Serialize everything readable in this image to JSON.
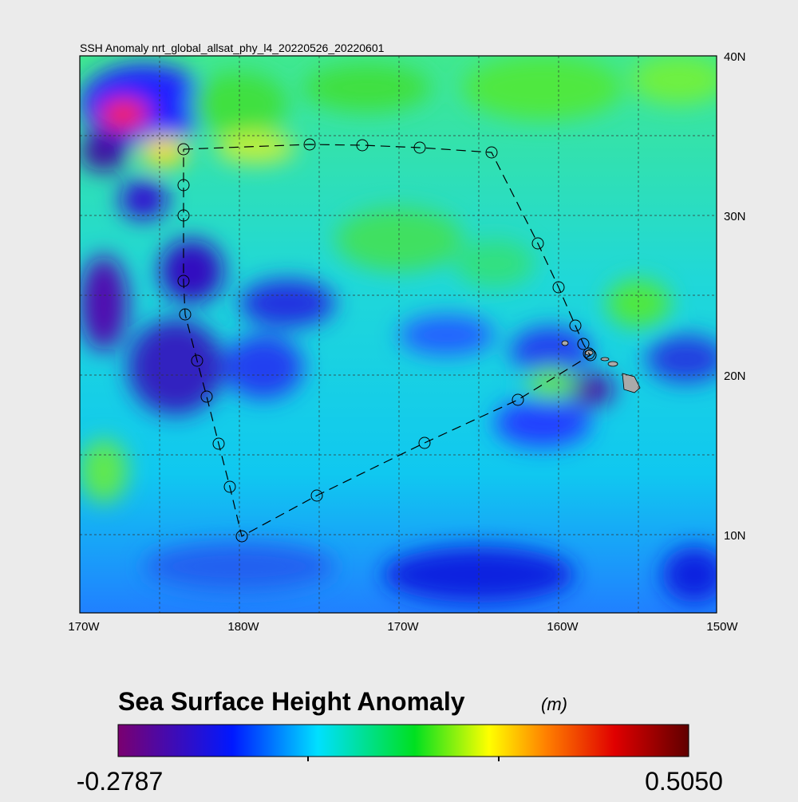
{
  "title": "SSH Anomaly nrt_global_allsat_phy_l4_20220526_20220601",
  "map": {
    "lon_labels": [
      "170W",
      "180W",
      "170W",
      "160W",
      "150W"
    ],
    "lat_labels": [
      "40N",
      "30N",
      "20N",
      "10N"
    ]
  },
  "colorbar": {
    "title": "Sea Surface Height Anomaly",
    "unit": "(m)",
    "min_label": "-0.2787",
    "max_label": "0.5050"
  }
}
